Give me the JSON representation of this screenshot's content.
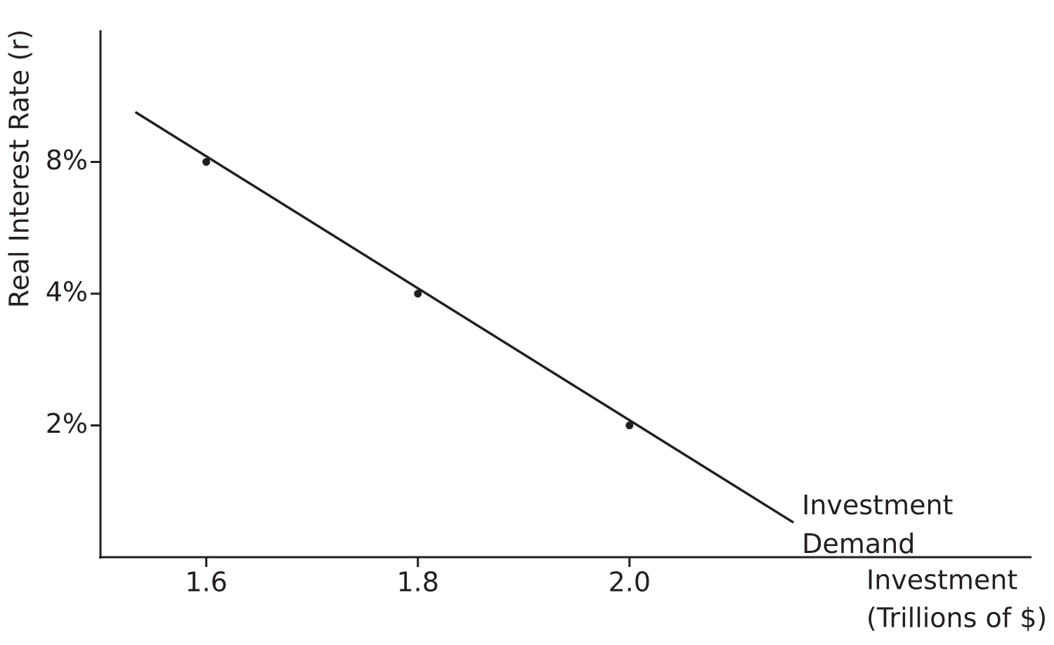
{
  "chart_data": {
    "type": "line",
    "ylabel": "Real Interest Rate (r)",
    "xlabel": [
      "Investment",
      "(Trillions of $)"
    ],
    "xlim": [
      1.5,
      2.38
    ],
    "ylim": [
      1,
      16
    ],
    "yscale": "log",
    "xticks": [
      1.6,
      1.8,
      {
        "value": 2,
        "label": "2.0"
      }
    ],
    "yticks": [
      {
        "value": 2,
        "label": "2%"
      },
      {
        "value": 4,
        "label": "4%"
      },
      {
        "value": 8,
        "label": "8%"
      }
    ],
    "series": [
      {
        "label": [
          "Investment",
          "Demand"
        ],
        "color": "#231f20",
        "x": [
          1.533,
          2.155
        ],
        "values": [
          10.4,
          1.2
        ]
      }
    ],
    "points": {
      "color": "#231f20",
      "x": [
        1.6,
        1.8,
        2.0
      ],
      "values": [
        8,
        4,
        2
      ]
    }
  }
}
